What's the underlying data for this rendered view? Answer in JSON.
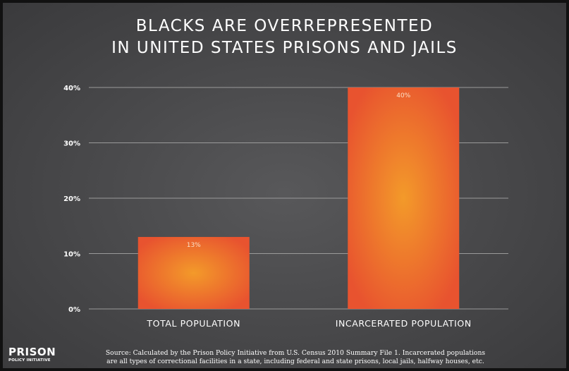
{
  "title_lines": [
    "BLACKS ARE OVERREPRESENTED",
    "IN UNITED STATES PRISONS AND JAILS"
  ],
  "logo": {
    "main": "PRISON",
    "sub": "POLICY INITIATIVE"
  },
  "source_lines": [
    "Source: Calculated by the Prison Policy Initiative from U.S. Census 2010 Summary File 1. Incarcerated populations",
    "are all types of correctional facilities in a state, including federal and state prisons, local jails, halfway houses, etc."
  ],
  "colors": {
    "bar_center": "#f39a2a",
    "bar_edge": "#e8532f",
    "background": "#4a4a4c",
    "grid": "#9a9a9a"
  },
  "chart_data": {
    "type": "bar",
    "title": "BLACKS ARE OVERREPRESENTED IN UNITED STATES PRISONS AND JAILS",
    "categories": [
      "TOTAL POPULATION",
      "INCARCERATED POPULATION"
    ],
    "values": [
      13,
      40
    ],
    "data_labels": [
      "13%",
      "40%"
    ],
    "xlabel": "",
    "ylabel": "",
    "ylim": [
      0,
      40
    ],
    "yticks": [
      0,
      10,
      20,
      30,
      40
    ],
    "ytick_labels": [
      "0%",
      "10%",
      "20%",
      "30%",
      "40%"
    ],
    "grid": true,
    "legend": "none"
  }
}
